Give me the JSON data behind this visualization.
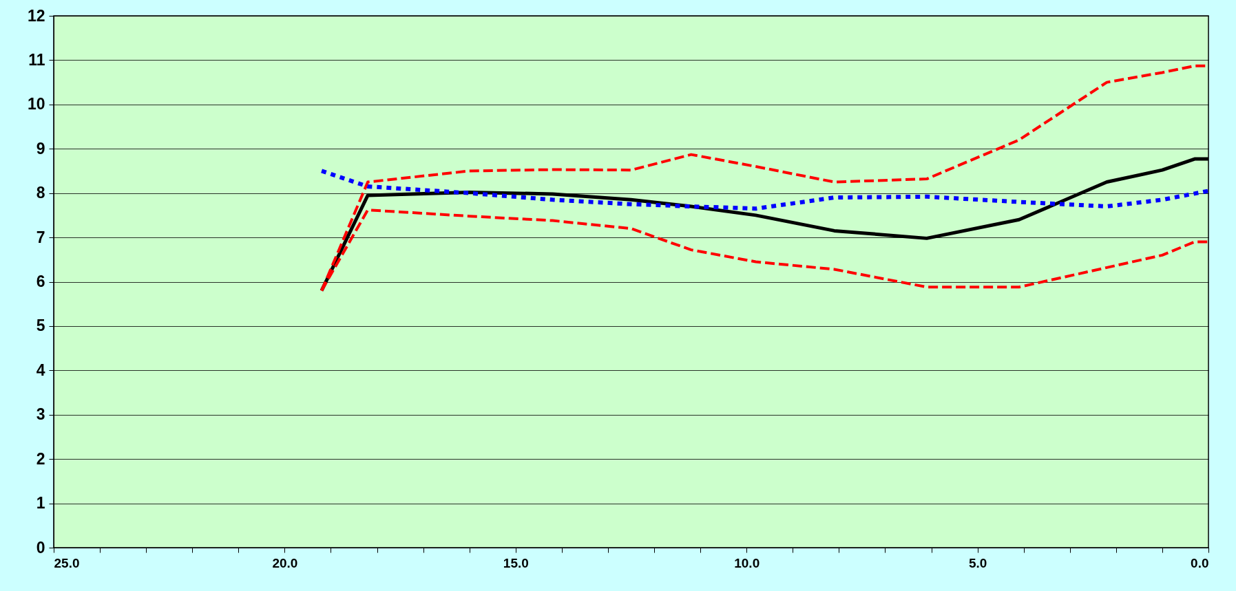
{
  "chart_data": {
    "type": "line",
    "xlim": [
      25,
      0
    ],
    "ylim": [
      0,
      12
    ],
    "xticks": [
      {
        "value": 25,
        "label": "25.0"
      },
      {
        "value": 24,
        "label": null
      },
      {
        "value": 23,
        "label": null
      },
      {
        "value": 22,
        "label": null
      },
      {
        "value": 21,
        "label": null
      },
      {
        "value": 20,
        "label": "20.0"
      },
      {
        "value": 19,
        "label": null
      },
      {
        "value": 18,
        "label": null
      },
      {
        "value": 17,
        "label": null
      },
      {
        "value": 16,
        "label": null
      },
      {
        "value": 15,
        "label": "15.0"
      },
      {
        "value": 14,
        "label": null
      },
      {
        "value": 13,
        "label": null
      },
      {
        "value": 12,
        "label": null
      },
      {
        "value": 11,
        "label": null
      },
      {
        "value": 10,
        "label": "10.0"
      },
      {
        "value": 9,
        "label": null
      },
      {
        "value": 8,
        "label": null
      },
      {
        "value": 7,
        "label": null
      },
      {
        "value": 6,
        "label": null
      },
      {
        "value": 5,
        "label": "5.0"
      },
      {
        "value": 4,
        "label": null
      },
      {
        "value": 3,
        "label": null
      },
      {
        "value": 2,
        "label": null
      },
      {
        "value": 1,
        "label": null
      },
      {
        "value": 0,
        "label": "0.0"
      }
    ],
    "yticks": [
      0,
      1,
      2,
      3,
      4,
      5,
      6,
      7,
      8,
      9,
      10,
      11,
      12
    ],
    "grid": "y",
    "series": [
      {
        "color": "#000000",
        "line_style": "solid",
        "x": [
          19.2,
          18.2,
          16.0,
          14.2,
          12.5,
          11.2,
          9.8,
          8.1,
          6.1,
          4.1,
          2.2,
          1.0,
          0.3,
          0
        ],
        "values": [
          5.8,
          7.95,
          8.02,
          7.98,
          7.85,
          7.7,
          7.5,
          7.15,
          6.98,
          7.4,
          8.25,
          8.52,
          8.77,
          8.77
        ]
      },
      {
        "color": "#ff0000",
        "line_style": "dashed",
        "x": [
          19.2,
          18.2,
          16.0,
          14.2,
          12.5,
          11.2,
          9.8,
          8.1,
          6.1,
          4.1,
          2.2,
          1.0,
          0.3,
          0
        ],
        "values": [
          5.8,
          8.25,
          8.5,
          8.53,
          8.52,
          8.87,
          8.6,
          8.25,
          8.32,
          9.2,
          10.5,
          10.72,
          10.87,
          10.87
        ]
      },
      {
        "color": "#ff0000",
        "line_style": "dashed",
        "x": [
          19.2,
          18.2,
          16.0,
          14.2,
          12.5,
          11.2,
          9.8,
          8.1,
          6.1,
          4.1,
          2.2,
          1.0,
          0.3,
          0
        ],
        "values": [
          5.8,
          7.62,
          7.48,
          7.38,
          7.2,
          6.72,
          6.45,
          6.28,
          5.88,
          5.88,
          6.32,
          6.6,
          6.9,
          6.9
        ]
      },
      {
        "color": "#0000ff",
        "line_style": "dotted",
        "x": [
          19.2,
          18.2,
          16.0,
          14.2,
          12.5,
          11.2,
          9.8,
          8.1,
          6.1,
          4.1,
          2.2,
          1.0,
          0
        ],
        "values": [
          8.5,
          8.15,
          8.0,
          7.85,
          7.75,
          7.7,
          7.65,
          7.9,
          7.92,
          7.8,
          7.7,
          7.85,
          8.05
        ]
      }
    ]
  }
}
